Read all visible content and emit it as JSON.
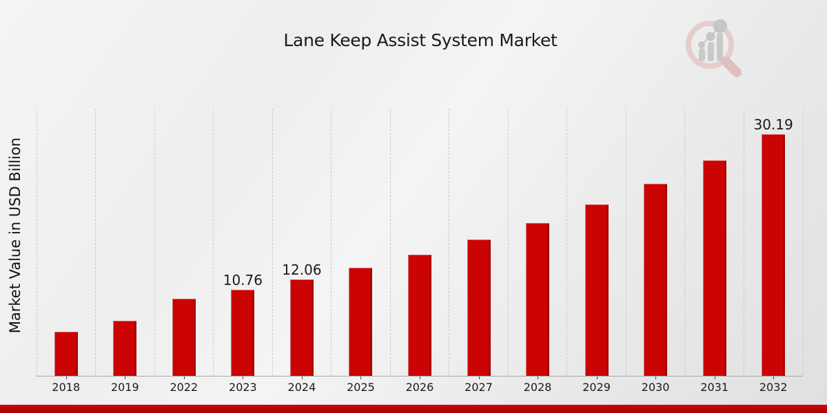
{
  "chart_data": {
    "type": "bar",
    "title": "Lane Keep Assist System Market",
    "xlabel": "",
    "ylabel": "Market Value in USD Billion",
    "categories": [
      "2018",
      "2019",
      "2022",
      "2023",
      "2024",
      "2025",
      "2026",
      "2027",
      "2028",
      "2029",
      "2030",
      "2031",
      "2032"
    ],
    "values": [
      5.48,
      6.91,
      9.62,
      10.76,
      12.06,
      13.53,
      15.17,
      17.01,
      19.08,
      21.4,
      24.0,
      26.92,
      30.19
    ],
    "bar_labels": [
      "",
      "",
      "",
      "10.76",
      "12.06",
      "",
      "",
      "",
      "",
      "",
      "",
      "",
      "30.19"
    ],
    "ylim": [
      0,
      33.4
    ],
    "grid": "vertical-dashed",
    "legend": "none",
    "colors": {
      "bar": "#cb0303",
      "bar_edge_dark": "#9a0101",
      "grid": "#c9c9c9",
      "axis": "#a6a6a6",
      "tick": "#444444",
      "text": "#1a1a1a",
      "bottom_strip_top": "#cf0606",
      "bottom_strip_bottom": "#a50202"
    }
  },
  "branding": {
    "logo_icon": "bar-chart-magnifier-watermark",
    "ring_color": "#e6cdcd",
    "handle_color": "#dfc0c0",
    "bars_color": "#c9c9c9",
    "dots_color": "#c6c6c6"
  }
}
